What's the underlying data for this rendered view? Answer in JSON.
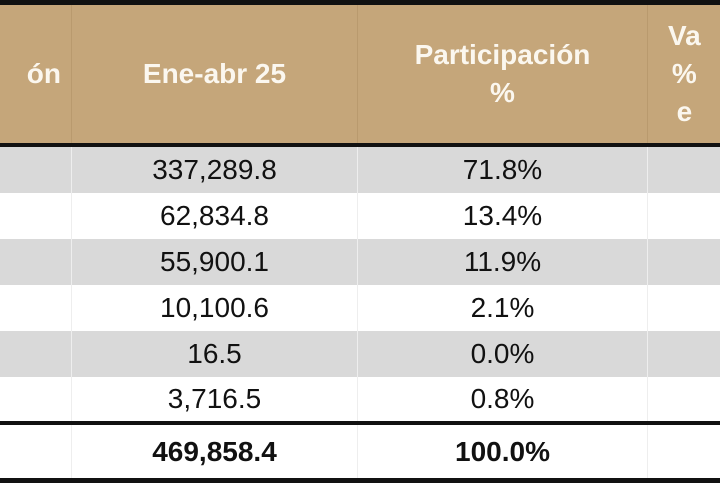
{
  "header": {
    "col1": "ón",
    "col2": "Ene-abr 25",
    "col3": "Participación\n%",
    "col4": "Va\n%\n e"
  },
  "rows": [
    {
      "value": "337,289.8",
      "share": "71.8%"
    },
    {
      "value": "62,834.8",
      "share": "13.4%"
    },
    {
      "value": "55,900.1",
      "share": "11.9%"
    },
    {
      "value": "10,100.6",
      "share": "2.1%"
    },
    {
      "value": "16.5",
      "share": "0.0%"
    },
    {
      "value": "3,716.5",
      "share": "0.8%"
    }
  ],
  "total": {
    "value": "469,858.4",
    "share": "100.0%"
  },
  "colors": {
    "header_bg": "#c5a67a",
    "stripe": "#d9d9d9",
    "rule": "#111111"
  }
}
